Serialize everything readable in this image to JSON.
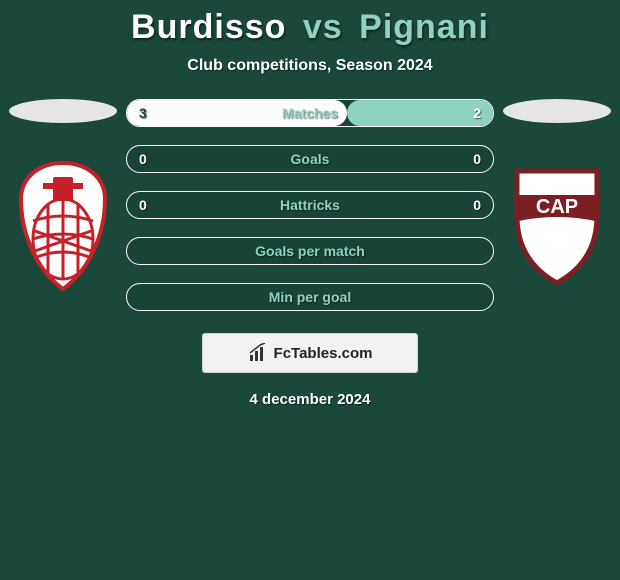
{
  "title": {
    "p1": "Burdisso",
    "vs": "vs",
    "p2": "Pignani"
  },
  "subtitle": "Club competitions, Season 2024",
  "date": "4 december 2024",
  "colors": {
    "background": "#1a483b",
    "p1": "#fcfcfc",
    "p2": "#8fd2c1",
    "bar_border": "#fcfcfc",
    "stat_text": "#ffffff",
    "brand_bg": "#f2f2f2",
    "brand_text": "#222222"
  },
  "stats": [
    {
      "label": "Matches",
      "v1": "3",
      "v2": "2",
      "pct1": 60,
      "pct2": 40
    },
    {
      "label": "Goals",
      "v1": "0",
      "v2": "0",
      "pct1": 0,
      "pct2": 0
    },
    {
      "label": "Hattricks",
      "v1": "0",
      "v2": "0",
      "pct1": 0,
      "pct2": 0
    },
    {
      "label": "Goals per match",
      "v1": "",
      "v2": "",
      "pct1": 0,
      "pct2": 0
    },
    {
      "label": "Min per goal",
      "v1": "",
      "v2": "",
      "pct1": 0,
      "pct2": 0
    }
  ],
  "brand": "FcTables.com",
  "crest_left": {
    "shield_stroke": "#c62128",
    "shield_fill": "#ffffff",
    "letter_fill": "#c62128",
    "mesh_stroke": "#c62128"
  },
  "crest_right": {
    "shield_stroke": "#7b1f24",
    "shield_fill": "#ffffff",
    "banner_fill": "#7b1f24",
    "banner_text_fill": "#ffffff"
  }
}
